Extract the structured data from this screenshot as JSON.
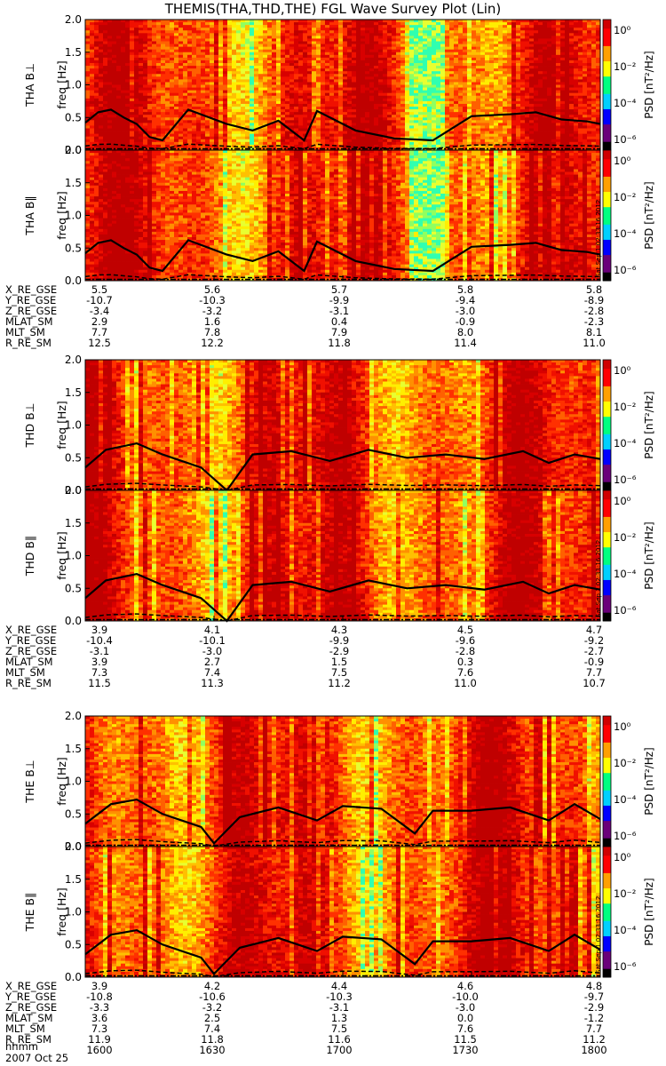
{
  "chart_data": {
    "type": "heatmap",
    "title": "THEMIS(THA,THD,THE) FGL Wave Survey Plot (Lin)",
    "date_label": "2007 Oct 25",
    "timestamp_label": "Sat Sep  1 02:33:16 2012",
    "grid": false,
    "colorbar": {
      "label": "PSD [nT²/Hz]",
      "label_text": "PSD [nT2/Hz]",
      "scale": "log",
      "ticks": [
        "10⁰",
        "10⁻²",
        "10⁻⁴",
        "10⁻⁶"
      ],
      "tick_exponents": [
        0,
        -2,
        -4,
        -6
      ],
      "colors": [
        "#000000",
        "#6a007a",
        "#0000ff",
        "#00d0ff",
        "#00ff80",
        "#ffff00",
        "#ffa000",
        "#ff0000",
        "#d00000"
      ]
    },
    "x": {
      "label": "hhmm",
      "ticks": [
        "1600",
        "1630",
        "1700",
        "1730",
        "1800"
      ],
      "range_hours": [
        16.0,
        18.0
      ]
    },
    "y": {
      "label": "freq [Hz]",
      "range": [
        0.0,
        2.0
      ],
      "ticks": [
        "0.0",
        "0.5",
        "1.0",
        "1.5",
        "2.0"
      ]
    },
    "panels": [
      {
        "probe": "THA",
        "ylabel_probe": "THA B⊥",
        "ylabel_par": "THA B∥",
        "ephemeris": [
          {
            "name": "X_RE_GSE",
            "values": [
              "5.5",
              "5.6",
              "5.7",
              "5.8",
              "5.8"
            ]
          },
          {
            "name": "Y_RE_GSE",
            "values": [
              "-10.7",
              "-10.3",
              "-9.9",
              "-9.4",
              "-8.9"
            ]
          },
          {
            "name": "Z_RE_GSE",
            "values": [
              "-3.4",
              "-3.2",
              "-3.1",
              "-3.0",
              "-2.8"
            ]
          },
          {
            "name": "MLAT_SM",
            "values": [
              "2.9",
              "1.6",
              "0.4",
              "-0.9",
              "-2.3"
            ]
          },
          {
            "name": "MLT_SM",
            "values": [
              "7.7",
              "7.8",
              "7.9",
              "8.0",
              "8.1"
            ]
          },
          {
            "name": "R_RE_SM",
            "values": [
              "12.5",
              "12.2",
              "11.8",
              "11.4",
              "11.0"
            ]
          }
        ],
        "gyro_curve_hz": [
          [
            16.0,
            0.42
          ],
          [
            16.05,
            0.58
          ],
          [
            16.1,
            0.62
          ],
          [
            16.15,
            0.5
          ],
          [
            16.2,
            0.4
          ],
          [
            16.25,
            0.2
          ],
          [
            16.3,
            0.15
          ],
          [
            16.4,
            0.62
          ],
          [
            16.55,
            0.4
          ],
          [
            16.65,
            0.3
          ],
          [
            16.75,
            0.45
          ],
          [
            16.85,
            0.15
          ],
          [
            16.9,
            0.6
          ],
          [
            17.05,
            0.3
          ],
          [
            17.2,
            0.18
          ],
          [
            17.35,
            0.15
          ],
          [
            17.5,
            0.52
          ],
          [
            17.65,
            0.55
          ],
          [
            17.75,
            0.58
          ],
          [
            17.85,
            0.47
          ],
          [
            17.95,
            0.44
          ],
          [
            18.0,
            0.4
          ]
        ],
        "strong_bands_hours": [
          17.28,
          17.32,
          17.36
        ]
      },
      {
        "probe": "THD",
        "ylabel_probe": "THD B⊥",
        "ylabel_par": "THD B∥",
        "ephemeris": [
          {
            "name": "X_RE_GSE",
            "values": [
              "3.9",
              "4.1",
              "4.3",
              "4.5",
              "4.7"
            ]
          },
          {
            "name": "Y_RE_GSE",
            "values": [
              "-10.4",
              "-10.1",
              "-9.9",
              "-9.6",
              "-9.2"
            ]
          },
          {
            "name": "Z_RE_GSE",
            "values": [
              "-3.1",
              "-3.0",
              "-2.9",
              "-2.8",
              "-2.7"
            ]
          },
          {
            "name": "MLAT_SM",
            "values": [
              "3.9",
              "2.7",
              "1.5",
              "0.3",
              "-0.9"
            ]
          },
          {
            "name": "MLT_SM",
            "values": [
              "7.3",
              "7.4",
              "7.5",
              "7.6",
              "7.7"
            ]
          },
          {
            "name": "R_RE_SM",
            "values": [
              "11.5",
              "11.3",
              "11.2",
              "11.0",
              "10.7"
            ]
          }
        ],
        "gyro_curve_hz": [
          [
            16.0,
            0.35
          ],
          [
            16.08,
            0.62
          ],
          [
            16.2,
            0.72
          ],
          [
            16.3,
            0.55
          ],
          [
            16.45,
            0.35
          ],
          [
            16.55,
            0.0
          ],
          [
            16.65,
            0.55
          ],
          [
            16.8,
            0.6
          ],
          [
            16.95,
            0.45
          ],
          [
            17.1,
            0.62
          ],
          [
            17.25,
            0.5
          ],
          [
            17.4,
            0.55
          ],
          [
            17.55,
            0.48
          ],
          [
            17.7,
            0.6
          ],
          [
            17.8,
            0.42
          ],
          [
            17.9,
            0.55
          ],
          [
            18.0,
            0.48
          ]
        ],
        "strong_bands_hours": []
      },
      {
        "probe": "THE",
        "ylabel_probe": "THE B⊥",
        "ylabel_par": "THE B∥",
        "ephemeris": [
          {
            "name": "X_RE_GSE",
            "values": [
              "3.9",
              "4.2",
              "4.4",
              "4.6",
              "4.8"
            ]
          },
          {
            "name": "Y_RE_GSE",
            "values": [
              "-10.8",
              "-10.6",
              "-10.3",
              "-10.0",
              "-9.7"
            ]
          },
          {
            "name": "Z_RE_GSE",
            "values": [
              "-3.3",
              "-3.2",
              "-3.1",
              "-3.0",
              "-2.9"
            ]
          },
          {
            "name": "MLAT_SM",
            "values": [
              "3.6",
              "2.5",
              "1.3",
              "0.0",
              "-1.2"
            ]
          },
          {
            "name": "MLT_SM",
            "values": [
              "7.3",
              "7.4",
              "7.5",
              "7.6",
              "7.7"
            ]
          },
          {
            "name": "R_RE_SM",
            "values": [
              "11.9",
              "11.8",
              "11.6",
              "11.5",
              "11.2"
            ]
          }
        ],
        "gyro_curve_hz": [
          [
            16.0,
            0.35
          ],
          [
            16.1,
            0.65
          ],
          [
            16.2,
            0.72
          ],
          [
            16.3,
            0.5
          ],
          [
            16.45,
            0.3
          ],
          [
            16.5,
            0.05
          ],
          [
            16.6,
            0.45
          ],
          [
            16.75,
            0.6
          ],
          [
            16.9,
            0.4
          ],
          [
            17.0,
            0.62
          ],
          [
            17.15,
            0.58
          ],
          [
            17.28,
            0.2
          ],
          [
            17.35,
            0.55
          ],
          [
            17.5,
            0.55
          ],
          [
            17.65,
            0.6
          ],
          [
            17.8,
            0.4
          ],
          [
            17.9,
            0.65
          ],
          [
            18.0,
            0.42
          ]
        ],
        "strong_bands_hours": []
      }
    ]
  }
}
